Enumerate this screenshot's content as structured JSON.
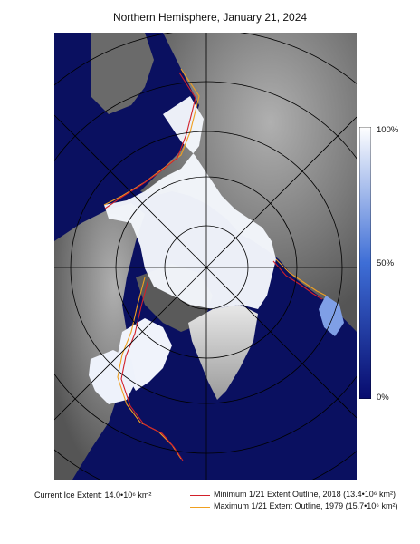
{
  "title": "Northern Hemisphere, January 21, 2024",
  "colorbar": {
    "labels": {
      "top": "100%",
      "mid": "50%",
      "bottom": "0%"
    },
    "colors": {
      "high": "#ffffff",
      "mid": "#3e6ed6",
      "low": "#070b6e"
    }
  },
  "legend": {
    "current": "Current Ice Extent: 14.0•10⁶ km²",
    "minimum": {
      "label": "Minimum 1/21 Extent Outline,  2018  (13.4•10⁶ km²)",
      "color": "#d2202a"
    },
    "maximum": {
      "label": "Maximum 1/21 Extent Outline, 1979  (15.7•10⁶ km²)",
      "color": "#f0a020"
    }
  },
  "colors": {
    "ocean": "#0a1060",
    "ice": "#f4f7fc",
    "land": "#6e6e6e",
    "grid": "#000000"
  }
}
